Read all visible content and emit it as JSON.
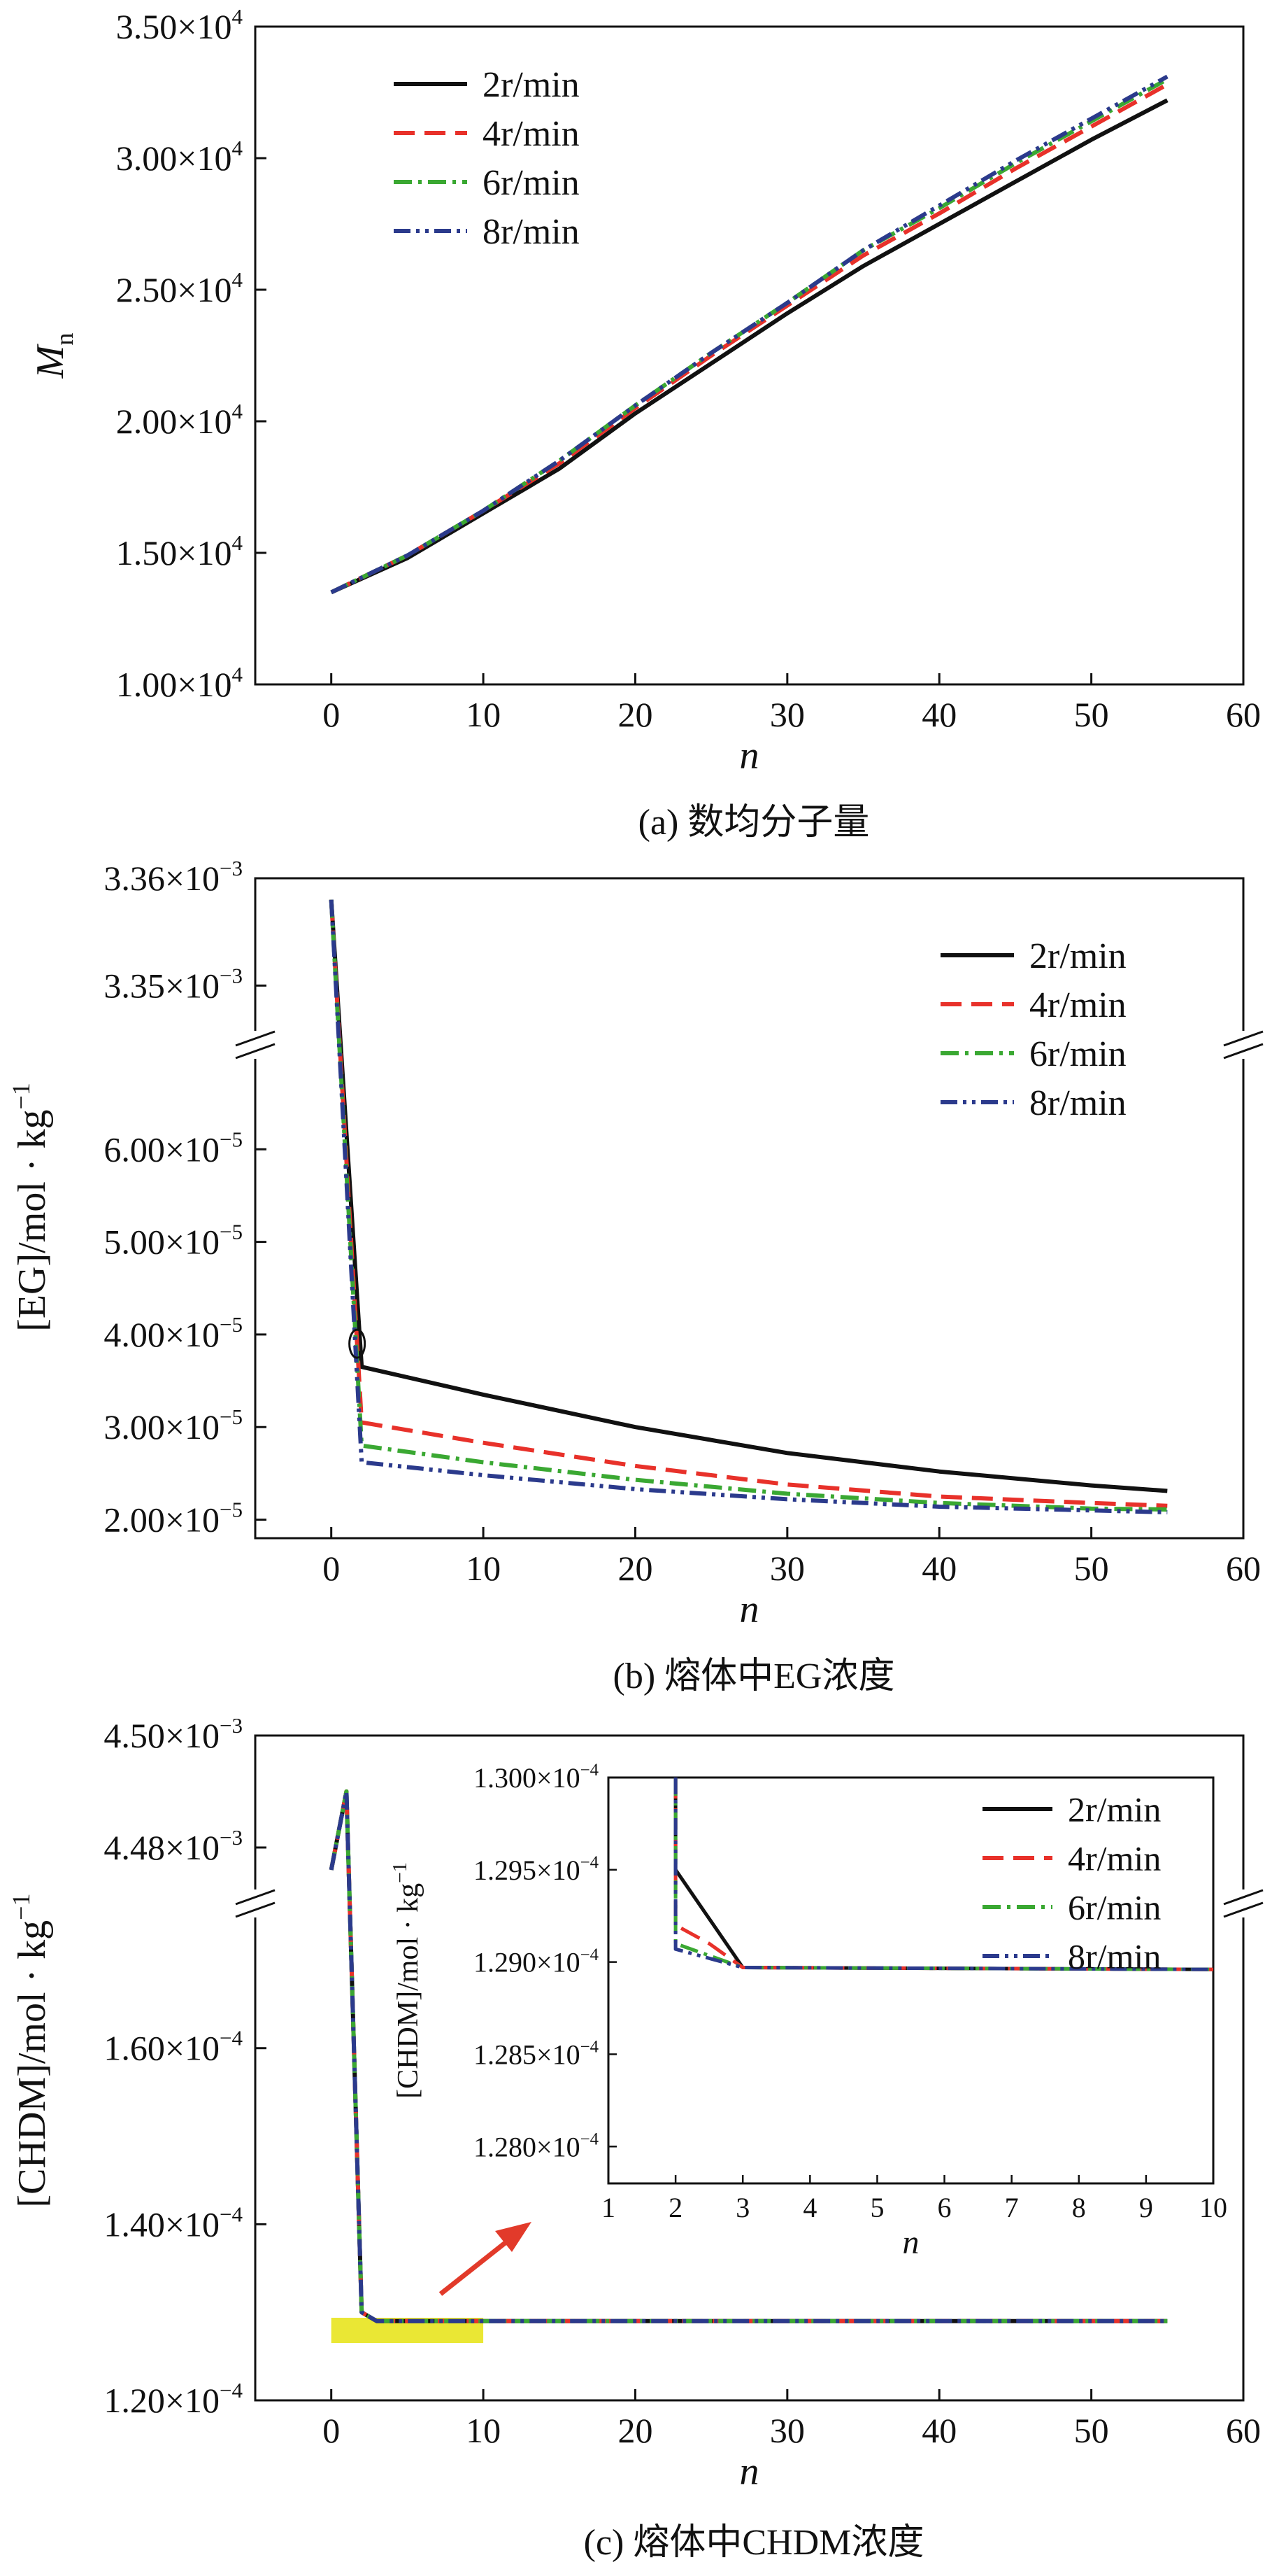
{
  "figure": {
    "panel_captions": [
      "(a) 数均分子量",
      "(b) 熔体中EG浓度",
      "(c) 熔体中CHDM浓度"
    ]
  },
  "colors": {
    "2r/min": "#111111",
    "4r/min": "#e8312a",
    "6r/min": "#3aa832",
    "8r/min": "#2b3a8c",
    "highlight": "#e8e41e",
    "arrow": "#e23a2a"
  },
  "chart_data": [
    {
      "id": "a",
      "type": "line",
      "caption": "(a) 数均分子量",
      "xlabel": "n",
      "ylabel": "Mn",
      "ylabel_main": "M",
      "ylabel_sub": "n",
      "xlim": [
        -5,
        60
      ],
      "ylim": [
        10000,
        35000
      ],
      "xticks": [
        0,
        10,
        20,
        30,
        40,
        50,
        60
      ],
      "yticks": [
        {
          "value": 10000,
          "mant": "1.00",
          "exp": "4"
        },
        {
          "value": 15000,
          "mant": "1.50",
          "exp": "4"
        },
        {
          "value": 20000,
          "mant": "2.00",
          "exp": "4"
        },
        {
          "value": 25000,
          "mant": "2.50",
          "exp": "4"
        },
        {
          "value": 30000,
          "mant": "3.00",
          "exp": "4"
        },
        {
          "value": 35000,
          "mant": "3.50",
          "exp": "4"
        }
      ],
      "legend": [
        "2r/min",
        "4r/min",
        "6r/min",
        "8r/min"
      ],
      "legend_position": "top-left",
      "series": [
        {
          "name": "2r/min",
          "style": "solid",
          "x": [
            0,
            5,
            10,
            15,
            20,
            25,
            30,
            35,
            40,
            45,
            50,
            55
          ],
          "y": [
            13500,
            14800,
            16500,
            18200,
            20300,
            22200,
            24100,
            25900,
            27500,
            29100,
            30700,
            32200
          ]
        },
        {
          "name": "4r/min",
          "style": "dash",
          "x": [
            0,
            5,
            10,
            15,
            20,
            25,
            30,
            35,
            40,
            45,
            50,
            55
          ],
          "y": [
            13500,
            14900,
            16600,
            18400,
            20500,
            22500,
            24400,
            26300,
            27900,
            29600,
            31200,
            32800
          ]
        },
        {
          "name": "6r/min",
          "style": "dashdot",
          "x": [
            0,
            5,
            10,
            15,
            20,
            25,
            30,
            35,
            40,
            45,
            50,
            55
          ],
          "y": [
            13500,
            14900,
            16600,
            18500,
            20600,
            22600,
            24500,
            26500,
            28100,
            29800,
            31400,
            33000
          ]
        },
        {
          "name": "8r/min",
          "style": "dashdotdot",
          "x": [
            0,
            5,
            10,
            15,
            20,
            25,
            30,
            35,
            40,
            45,
            50,
            55
          ],
          "y": [
            13500,
            14900,
            16600,
            18500,
            20600,
            22600,
            24500,
            26500,
            28200,
            29900,
            31500,
            33100
          ]
        }
      ]
    },
    {
      "id": "b",
      "type": "line",
      "caption": "(b) 熔体中EG浓度",
      "xlabel": "n",
      "ylabel": "[EG]/mol・kg⁻¹",
      "ylabel_main": "[EG]/mol · kg",
      "ylabel_sup": "−1",
      "xlim": [
        -5,
        60
      ],
      "axis_break": true,
      "ylim_upper": [
        0.003345,
        0.00336
      ],
      "ylim_lower": [
        1.8e-05,
        7e-05
      ],
      "xticks": [
        0,
        10,
        20,
        30,
        40,
        50,
        60
      ],
      "yticks_upper": [
        {
          "value": 0.00335,
          "mant": "3.35",
          "exp": "−3"
        },
        {
          "value": 0.00336,
          "mant": "3.36",
          "exp": "−3"
        }
      ],
      "yticks_lower": [
        {
          "value": 2e-05,
          "mant": "2.00",
          "exp": "−5"
        },
        {
          "value": 3e-05,
          "mant": "3.00",
          "exp": "−5"
        },
        {
          "value": 4e-05,
          "mant": "4.00",
          "exp": "−5"
        },
        {
          "value": 5e-05,
          "mant": "5.00",
          "exp": "−5"
        },
        {
          "value": 6e-05,
          "mant": "6.00",
          "exp": "−5"
        }
      ],
      "legend": [
        "2r/min",
        "4r/min",
        "6r/min",
        "8r/min"
      ],
      "legend_position": "top-right",
      "series": [
        {
          "name": "2r/min",
          "style": "solid",
          "x": [
            0,
            2,
            10,
            20,
            30,
            40,
            50,
            55
          ],
          "y": [
            0.003358,
            3.65e-05,
            3.35e-05,
            3e-05,
            2.72e-05,
            2.52e-05,
            2.37e-05,
            2.31e-05
          ]
        },
        {
          "name": "4r/min",
          "style": "dash",
          "x": [
            0,
            2,
            10,
            20,
            30,
            40,
            50,
            55
          ],
          "y": [
            0.003358,
            3.05e-05,
            2.83e-05,
            2.58e-05,
            2.38e-05,
            2.25e-05,
            2.18e-05,
            2.15e-05
          ]
        },
        {
          "name": "6r/min",
          "style": "dashdot",
          "x": [
            0,
            2,
            10,
            20,
            30,
            40,
            50,
            55
          ],
          "y": [
            0.003358,
            2.8e-05,
            2.62e-05,
            2.43e-05,
            2.28e-05,
            2.18e-05,
            2.12e-05,
            2.11e-05
          ]
        },
        {
          "name": "8r/min",
          "style": "dashdotdot",
          "x": [
            0,
            2,
            10,
            20,
            30,
            40,
            50,
            55
          ],
          "y": [
            0.003358,
            2.62e-05,
            2.48e-05,
            2.33e-05,
            2.22e-05,
            2.14e-05,
            2.1e-05,
            2.08e-05
          ]
        }
      ]
    },
    {
      "id": "c",
      "type": "line",
      "caption": "(c) 熔体中CHDM浓度",
      "xlabel": "n",
      "ylabel": "[CHDM]/mol・kg⁻¹",
      "ylabel_main": "[CHDM]/mol · kg",
      "ylabel_sup": "−1",
      "xlim": [
        -5,
        60
      ],
      "axis_break": true,
      "ylim_upper": [
        0.004471,
        0.0045
      ],
      "ylim_lower": [
        0.00012,
        0.000175
      ],
      "xticks": [
        0,
        10,
        20,
        30,
        40,
        50,
        60
      ],
      "yticks_upper": [
        {
          "value": 0.00448,
          "mant": "4.48",
          "exp": "−3"
        },
        {
          "value": 0.0045,
          "mant": "4.50",
          "exp": "−3"
        }
      ],
      "yticks_lower": [
        {
          "value": 0.00012,
          "mant": "1.20",
          "exp": "−4"
        },
        {
          "value": 0.00014,
          "mant": "1.40",
          "exp": "−4"
        },
        {
          "value": 0.00016,
          "mant": "1.60",
          "exp": "−4"
        }
      ],
      "highlight_x": [
        0,
        10
      ],
      "series": [
        {
          "name": "2r/min",
          "style": "solid",
          "x": [
            0,
            1,
            2,
            3,
            55
          ],
          "y": [
            0.004476,
            0.00449,
            0.00013,
            0.000129,
            0.000129
          ]
        },
        {
          "name": "4r/min",
          "style": "dash",
          "x": [
            0,
            1,
            2,
            3,
            55
          ],
          "y": [
            0.004476,
            0.00449,
            0.00013,
            0.000129,
            0.000129
          ]
        },
        {
          "name": "6r/min",
          "style": "dashdot",
          "x": [
            0,
            1,
            2,
            3,
            55
          ],
          "y": [
            0.004476,
            0.00449,
            0.00013,
            0.000129,
            0.000129
          ]
        },
        {
          "name": "8r/min",
          "style": "dashdotdot",
          "x": [
            0,
            1,
            2,
            3,
            55
          ],
          "y": [
            0.004476,
            0.00449,
            0.00013,
            0.000129,
            0.000129
          ]
        }
      ],
      "inset": {
        "xlabel": "n",
        "ylabel_main": "[CHDM]/mol · kg",
        "ylabel_sup": "−1",
        "xlim": [
          1,
          10
        ],
        "ylim": [
          0.0001278,
          0.00013
        ],
        "xticks": [
          1,
          2,
          3,
          4,
          5,
          6,
          7,
          8,
          9,
          10
        ],
        "yticks": [
          {
            "value": 0.000128,
            "mant": "1.280",
            "exp": "−4"
          },
          {
            "value": 0.0001285,
            "mant": "1.285",
            "exp": "−4"
          },
          {
            "value": 0.000129,
            "mant": "1.290",
            "exp": "−4"
          },
          {
            "value": 0.0001295,
            "mant": "1.295",
            "exp": "−4"
          },
          {
            "value": 0.00013,
            "mant": "1.300",
            "exp": "−4"
          }
        ],
        "legend": [
          "2r/min",
          "4r/min",
          "6r/min",
          "8r/min"
        ],
        "legend_position": "top-right",
        "series": [
          {
            "name": "2r/min",
            "style": "solid",
            "x": [
              2,
              2,
              3,
              10
            ],
            "y": [
              0.00013,
              0.0001295,
              0.00012897,
              0.00012896
            ]
          },
          {
            "name": "4r/min",
            "style": "dash",
            "x": [
              2,
              2,
              2.5,
              3,
              10
            ],
            "y": [
              0.00013,
              0.0001292,
              0.0001291,
              0.00012897,
              0.00012896
            ]
          },
          {
            "name": "6r/min",
            "style": "dashdot",
            "x": [
              2,
              2,
              3,
              10
            ],
            "y": [
              0.00013,
              0.0001291,
              0.00012897,
              0.00012896
            ]
          },
          {
            "name": "8r/min",
            "style": "dashdotdot",
            "x": [
              2,
              2,
              3,
              10
            ],
            "y": [
              0.00013,
              0.00012907,
              0.00012897,
              0.00012896
            ]
          }
        ]
      }
    }
  ]
}
